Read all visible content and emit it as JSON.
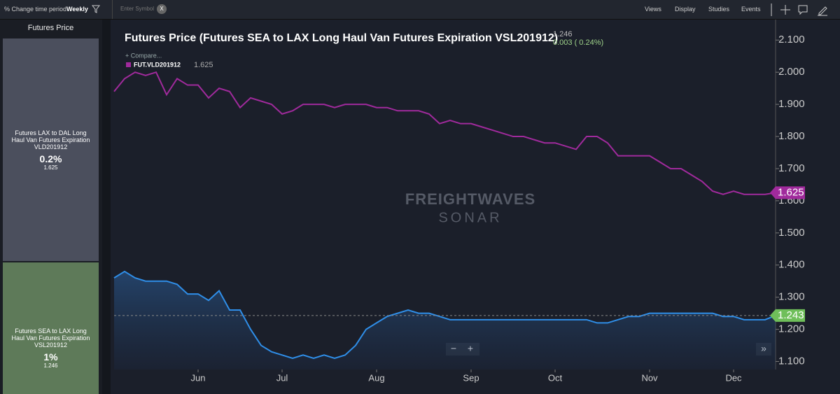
{
  "toolbar": {
    "period_label": "% Change time period",
    "period_value": "Weekly",
    "symbol_placeholder": "Enter Symbol",
    "clear": "X",
    "menus": [
      "Views",
      "Display",
      "Studies",
      "Events"
    ]
  },
  "sidebar": {
    "header": "Futures Price",
    "cards": [
      {
        "name": "Futures LAX to DAL Long Haul Van Futures Expiration VLD201912",
        "change": "0.2%",
        "price": "1.625"
      },
      {
        "name": "Futures SEA to LAX Long Haul Van Futures Expiration VSL201912",
        "change": "1%",
        "price": "1.246"
      }
    ]
  },
  "chart_data": {
    "type": "line",
    "title": "Futures Price (Futures SEA to LAX Long Haul Van Futures Expiration VSL201912)",
    "header_price": "1.246",
    "header_change": "0.003 ( 0.24%)",
    "compare": "+ Compare...",
    "legend_value": "1.625",
    "watermark": [
      "FREIGHTWAVES",
      "SONAR"
    ],
    "controls": [
      "−",
      "+",
      "»"
    ],
    "categories": [
      null,
      null,
      null,
      null,
      null,
      null,
      null,
      null,
      "Jun",
      null,
      null,
      null,
      null,
      null,
      null,
      null,
      "Jul",
      null,
      null,
      null,
      null,
      null,
      null,
      null,
      null,
      "Aug",
      null,
      null,
      null,
      null,
      null,
      null,
      null,
      null,
      "Sep",
      null,
      null,
      null,
      null,
      null,
      null,
      null,
      "Oct",
      null,
      null,
      null,
      null,
      null,
      null,
      null,
      null,
      "Nov",
      null,
      null,
      null,
      null,
      null,
      null,
      null,
      "Dec",
      null,
      null,
      null,
      null
    ],
    "series": [
      {
        "name": "FUT.VLD201912",
        "color": "#a02a9c",
        "values": [
          1.94,
          1.98,
          2.0,
          1.99,
          2.0,
          1.93,
          1.98,
          1.96,
          1.96,
          1.92,
          1.95,
          1.94,
          1.89,
          1.92,
          1.91,
          1.9,
          1.87,
          1.88,
          1.9,
          1.9,
          1.9,
          1.89,
          1.9,
          1.9,
          1.9,
          1.89,
          1.89,
          1.88,
          1.88,
          1.88,
          1.87,
          1.84,
          1.85,
          1.84,
          1.84,
          1.83,
          1.82,
          1.81,
          1.8,
          1.8,
          1.79,
          1.78,
          1.78,
          1.77,
          1.76,
          1.8,
          1.8,
          1.78,
          1.74,
          1.74,
          1.74,
          1.74,
          1.72,
          1.7,
          1.7,
          1.68,
          1.66,
          1.63,
          1.62,
          1.63,
          1.62,
          1.62,
          1.62,
          1.625
        ]
      },
      {
        "color": "#2f8ee8",
        "area": true,
        "values": [
          1.36,
          1.38,
          1.36,
          1.35,
          1.35,
          1.35,
          1.34,
          1.31,
          1.31,
          1.29,
          1.32,
          1.26,
          1.26,
          1.2,
          1.15,
          1.13,
          1.12,
          1.11,
          1.12,
          1.11,
          1.12,
          1.11,
          1.12,
          1.15,
          1.2,
          1.22,
          1.24,
          1.25,
          1.26,
          1.25,
          1.25,
          1.24,
          1.23,
          1.23,
          1.23,
          1.23,
          1.23,
          1.23,
          1.23,
          1.23,
          1.23,
          1.23,
          1.23,
          1.23,
          1.23,
          1.23,
          1.22,
          1.22,
          1.23,
          1.24,
          1.24,
          1.25,
          1.25,
          1.25,
          1.25,
          1.25,
          1.25,
          1.25,
          1.24,
          1.24,
          1.23,
          1.23,
          1.23,
          1.243
        ]
      }
    ],
    "price_markers": [
      {
        "value": 1.625,
        "color": "#a02a9c"
      },
      {
        "value": 1.243,
        "color": "#6fbf5a",
        "dashed": true
      }
    ],
    "ylim": [
      1.075,
      2.155
    ],
    "yticks": [
      {
        "value": 1.1,
        "label": "1.100"
      },
      {
        "value": 1.2,
        "label": "1.200"
      },
      {
        "value": 1.3,
        "label": "1.300"
      },
      {
        "value": 1.4,
        "label": "1.400"
      },
      {
        "value": 1.5,
        "label": "1.500"
      },
      {
        "value": 1.6,
        "label": "1.600"
      },
      {
        "value": 1.7,
        "label": "1.700"
      },
      {
        "value": 1.8,
        "label": "1.800"
      },
      {
        "value": 1.9,
        "label": "1.900"
      },
      {
        "value": 2.0,
        "label": "2.000"
      },
      {
        "value": 2.1,
        "label": "2.100"
      }
    ],
    "grid": false
  }
}
